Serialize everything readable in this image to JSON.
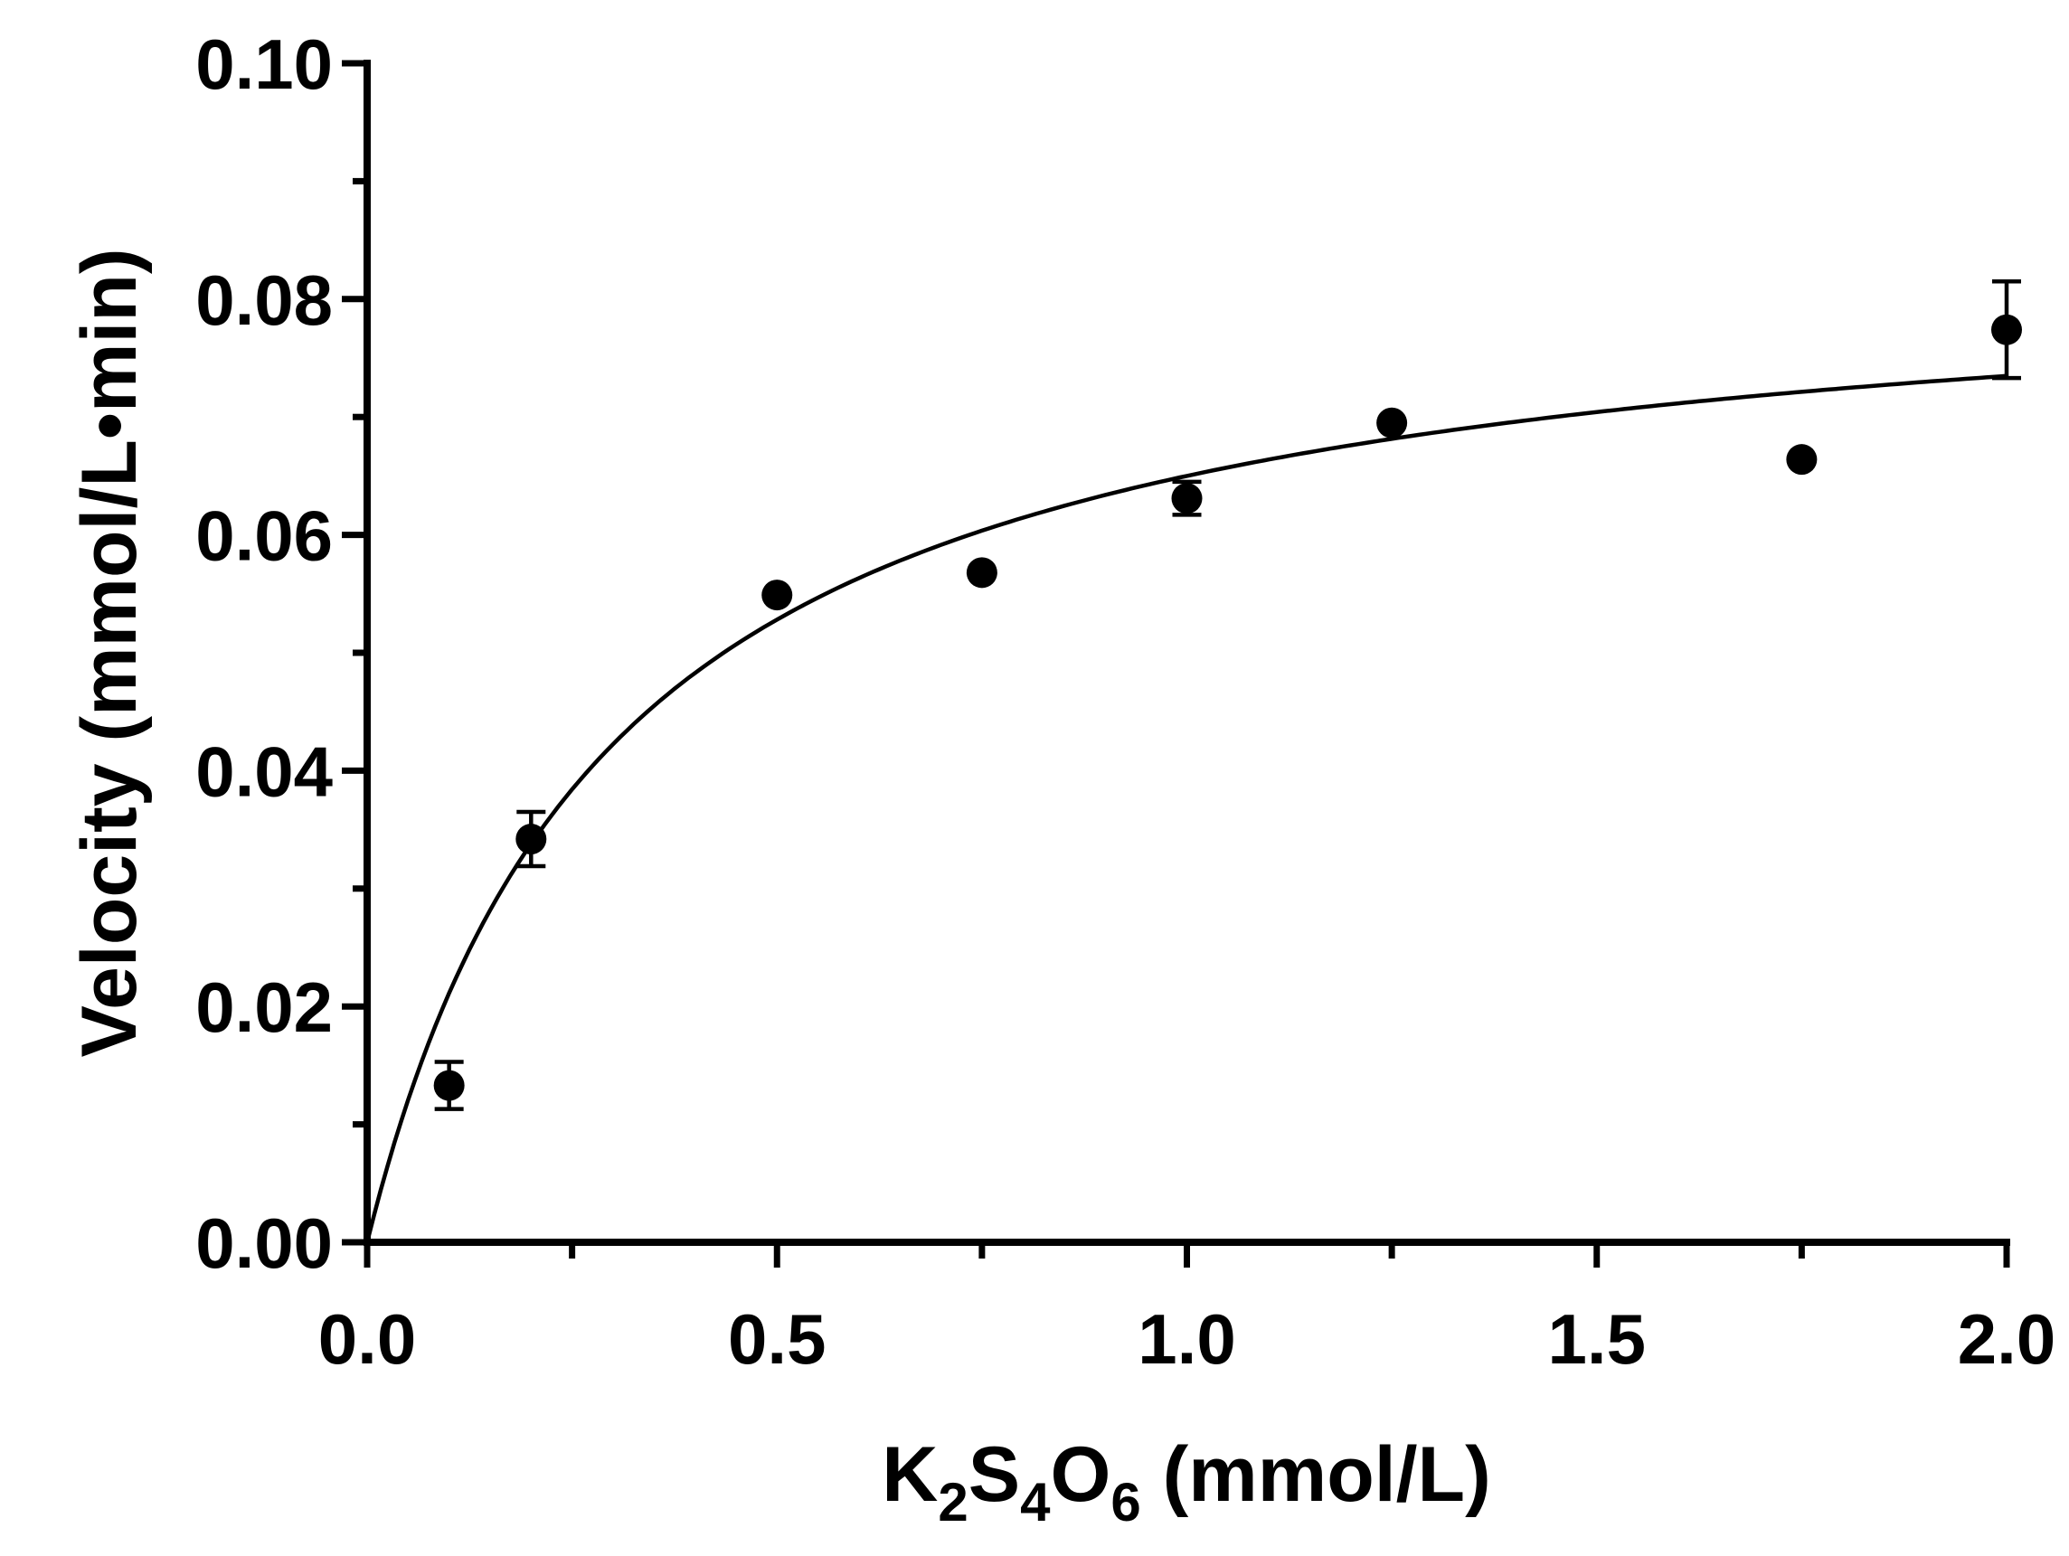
{
  "chart_data": {
    "type": "scatter",
    "xlabel": {
      "main": "K",
      "sub1": "2",
      "mid1": "S",
      "sub2": "4",
      "mid2": "O",
      "sub3": "6",
      "unit": " (mmol/L)"
    },
    "ylabel": "Velocity (mmol/L•min)",
    "xlim": [
      0,
      2.0
    ],
    "ylim": [
      0,
      0.1
    ],
    "x_ticks": [
      0.0,
      0.5,
      1.0,
      1.5,
      2.0
    ],
    "x_tick_labels": [
      "0.0",
      "0.5",
      "1.0",
      "1.5",
      "2.0"
    ],
    "x_minor_ticks": [
      0.25,
      0.75,
      1.25,
      1.75
    ],
    "y_ticks": [
      0.0,
      0.02,
      0.04,
      0.06,
      0.08,
      0.1
    ],
    "y_tick_labels": [
      "0.00",
      "0.02",
      "0.04",
      "0.06",
      "0.08",
      "0.10"
    ],
    "y_minor_ticks": [
      0.01,
      0.03,
      0.05,
      0.07,
      0.09
    ],
    "grid": false,
    "points": [
      {
        "x": 0.1,
        "y": 0.0133,
        "err": 0.002
      },
      {
        "x": 0.2,
        "y": 0.0342,
        "err": 0.0023
      },
      {
        "x": 0.5,
        "y": 0.0549,
        "err": 0
      },
      {
        "x": 0.75,
        "y": 0.0568,
        "err": 0
      },
      {
        "x": 1.0,
        "y": 0.0631,
        "err": 0.0014
      },
      {
        "x": 1.25,
        "y": 0.0695,
        "err": 0
      },
      {
        "x": 1.75,
        "y": 0.0664,
        "err": 0
      },
      {
        "x": 2.0,
        "y": 0.0774,
        "err": 0.0041
      }
    ],
    "fit": {
      "model": "Michaelis-Menten",
      "vmax": 0.0845,
      "km": 0.3
    }
  }
}
